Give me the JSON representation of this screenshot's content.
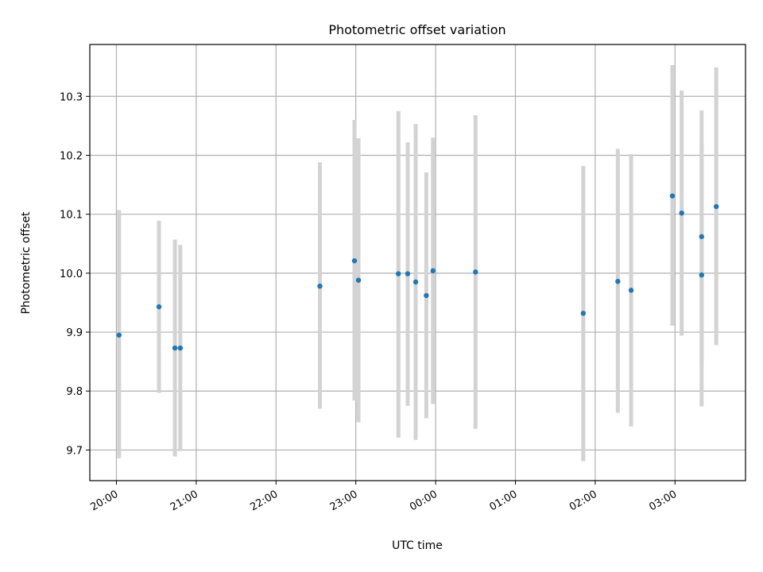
{
  "chart_data": {
    "type": "scatter",
    "title": "Photometric offset variation",
    "xlabel": "UTC time",
    "ylabel": "Photometric offset",
    "x_unit": "UTC time (hours, day 1 from 20:00 through day 2 03:30)",
    "xlim": [
      "19:40",
      "03:53"
    ],
    "ylim": [
      9.648,
      10.388
    ],
    "x_ticks": [
      "20:00",
      "21:00",
      "22:00",
      "23:00",
      "00:00",
      "01:00",
      "02:00",
      "03:00"
    ],
    "y_ticks": [
      "9.7",
      "9.8",
      "9.9",
      "10.0",
      "10.1",
      "10.2",
      "10.3"
    ],
    "grid": true,
    "colors": {
      "points": "#1f77b4",
      "errorbars": "#d3d3d3",
      "grid": "#b0b0b0"
    },
    "points": [
      {
        "time": "20:02",
        "y": 9.895,
        "ylow": 9.686,
        "yhigh": 10.107
      },
      {
        "time": "20:32",
        "y": 9.943,
        "ylow": 9.797,
        "yhigh": 10.089
      },
      {
        "time": "20:44",
        "y": 9.873,
        "ylow": 9.689,
        "yhigh": 10.057
      },
      {
        "time": "20:48",
        "y": 9.873,
        "ylow": 9.698,
        "yhigh": 10.048
      },
      {
        "time": "22:33",
        "y": 9.978,
        "ylow": 9.77,
        "yhigh": 10.188
      },
      {
        "time": "22:59",
        "y": 10.021,
        "ylow": 9.784,
        "yhigh": 10.26
      },
      {
        "time": "23:02",
        "y": 9.988,
        "ylow": 9.747,
        "yhigh": 10.229
      },
      {
        "time": "23:32",
        "y": 9.999,
        "ylow": 9.721,
        "yhigh": 10.275
      },
      {
        "time": "23:39",
        "y": 9.999,
        "ylow": 9.775,
        "yhigh": 10.222
      },
      {
        "time": "23:45",
        "y": 9.985,
        "ylow": 9.717,
        "yhigh": 10.253
      },
      {
        "time": "23:53",
        "y": 9.962,
        "ylow": 9.754,
        "yhigh": 10.171
      },
      {
        "time": "23:58",
        "y": 10.004,
        "ylow": 9.778,
        "yhigh": 10.23
      },
      {
        "time": "00:30",
        "y": 10.002,
        "ylow": 9.736,
        "yhigh": 10.268
      },
      {
        "time": "01:51",
        "y": 9.932,
        "ylow": 9.681,
        "yhigh": 10.182
      },
      {
        "time": "02:17",
        "y": 9.986,
        "ylow": 9.763,
        "yhigh": 10.211
      },
      {
        "time": "02:27",
        "y": 9.971,
        "ylow": 9.74,
        "yhigh": 10.202
      },
      {
        "time": "02:58",
        "y": 10.131,
        "ylow": 9.911,
        "yhigh": 10.353
      },
      {
        "time": "03:05",
        "y": 10.102,
        "ylow": 9.894,
        "yhigh": 10.31
      },
      {
        "time": "03:20",
        "y": 10.062,
        "ylow": 9.849,
        "yhigh": 10.22
      },
      {
        "time": "03:20",
        "y": 9.997,
        "ylow": 9.774,
        "yhigh": 10.276
      },
      {
        "time": "03:31",
        "y": 10.113,
        "ylow": 9.878,
        "yhigh": 10.349
      }
    ]
  }
}
